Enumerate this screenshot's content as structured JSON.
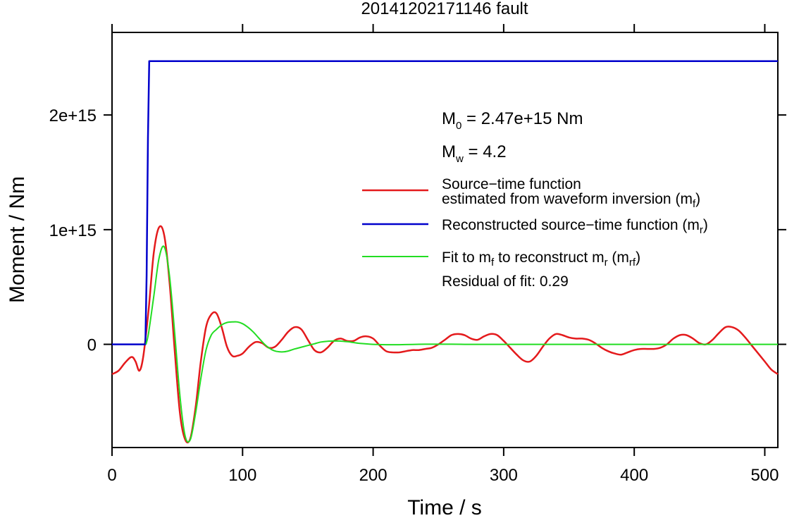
{
  "chart_data": {
    "type": "line",
    "title": "20141202171146 fault",
    "xlabel": "Time / s",
    "ylabel": "Moment / Nm",
    "xlim": [
      0,
      510
    ],
    "ylim": [
      -900000000000000.0,
      2720000000000000.0
    ],
    "xticks": [
      0,
      100,
      200,
      300,
      400,
      500
    ],
    "xtick_labels": [
      "0",
      "100",
      "200",
      "300",
      "400",
      "500"
    ],
    "yticks": [
      0,
      1000000000000000.0,
      2000000000000000.0
    ],
    "ytick_labels": [
      "0",
      "1e+15",
      "2e+15"
    ],
    "grid": false,
    "legend_position": "top-right",
    "annotations": {
      "m0": {
        "main": "M",
        "sub": "0",
        "rest": " = 2.47e+15 Nm"
      },
      "mw": {
        "main": "M",
        "sub": "w",
        "rest": " = 4.2"
      },
      "residual": "Residual of fit: 0.29"
    },
    "legend": {
      "stf_line1": "Source−time function",
      "stf_line2": "estimated from waveform inversion (m",
      "stf_sub": "f",
      "stf_close": ")",
      "rec_text": "Reconstructed source−time function (m",
      "rec_sub": "r",
      "rec_close": ")",
      "fit_a": "Fit to m",
      "fit_a_sub": "f",
      "fit_b": " to reconstruct m",
      "fit_b_sub": "r",
      "fit_c": " (m",
      "fit_c_sub": "rf",
      "fit_d": ")"
    },
    "series": [
      {
        "key": "source_time_function",
        "color": "#e41a1c",
        "x": [
          0,
          5,
          10,
          15,
          18,
          21,
          24,
          28,
          32,
          36,
          40,
          44,
          48,
          52,
          56,
          60,
          64,
          68,
          72,
          76,
          80,
          84,
          88,
          92,
          96,
          100,
          105,
          110,
          115,
          120,
          125,
          130,
          135,
          140,
          145,
          150,
          155,
          160,
          165,
          170,
          175,
          180,
          185,
          190,
          195,
          200,
          205,
          210,
          215,
          220,
          225,
          230,
          235,
          240,
          245,
          250,
          255,
          260,
          265,
          270,
          275,
          280,
          285,
          290,
          295,
          300,
          305,
          310,
          315,
          320,
          325,
          330,
          335,
          340,
          345,
          350,
          355,
          360,
          365,
          370,
          375,
          380,
          385,
          390,
          395,
          400,
          405,
          410,
          415,
          420,
          425,
          430,
          435,
          440,
          445,
          450,
          455,
          460,
          465,
          470,
          475,
          480,
          485,
          490,
          495,
          500,
          505,
          510
        ],
        "y": [
          -260000000000000.0,
          -230000000000000.0,
          -160000000000000.0,
          -110000000000000.0,
          -150000000000000.0,
          -230000000000000.0,
          -100000000000000.0,
          300000000000000.0,
          800000000000000.0,
          1020000000000000.0,
          950000000000000.0,
          550000000000000.0,
          -50000000000000.0,
          -600000000000000.0,
          -830000000000000.0,
          -820000000000000.0,
          -550000000000000.0,
          -150000000000000.0,
          150000000000000.0,
          260000000000000.0,
          270000000000000.0,
          150000000000000.0,
          -20000000000000.0,
          -100000000000000.0,
          -100000000000000.0,
          -80000000000000.0,
          -20000000000000.0,
          20000000000000.0,
          10000000000000.0,
          -30000000000000.0,
          -20000000000000.0,
          40000000000000.0,
          110000000000000.0,
          150000000000000.0,
          130000000000000.0,
          40000000000000.0,
          -50000000000000.0,
          -70000000000000.0,
          -30000000000000.0,
          30000000000000.0,
          50000000000000.0,
          30000000000000.0,
          30000000000000.0,
          60000000000000.0,
          70000000000000.0,
          50000000000000.0,
          -10000000000000.0,
          -60000000000000.0,
          -70000000000000.0,
          -70000000000000.0,
          -60000000000000.0,
          -50000000000000.0,
          -50000000000000.0,
          -40000000000000.0,
          -30000000000000.0,
          0,
          40000000000000.0,
          80000000000000.0,
          90000000000000.0,
          80000000000000.0,
          50000000000000.0,
          40000000000000.0,
          70000000000000.0,
          90000000000000.0,
          80000000000000.0,
          30000000000000.0,
          -30000000000000.0,
          -90000000000000.0,
          -140000000000000.0,
          -150000000000000.0,
          -100000000000000.0,
          -20000000000000.0,
          50000000000000.0,
          90000000000000.0,
          80000000000000.0,
          60000000000000.0,
          50000000000000.0,
          50000000000000.0,
          40000000000000.0,
          10000000000000.0,
          -30000000000000.0,
          -60000000000000.0,
          -80000000000000.0,
          -90000000000000.0,
          -70000000000000.0,
          -50000000000000.0,
          -40000000000000.0,
          -40000000000000.0,
          -40000000000000.0,
          -30000000000000.0,
          0,
          50000000000000.0,
          80000000000000.0,
          80000000000000.0,
          50000000000000.0,
          10000000000000.0,
          0,
          40000000000000.0,
          100000000000000.0,
          150000000000000.0,
          150000000000000.0,
          120000000000000.0,
          60000000000000.0,
          -10000000000000.0,
          -80000000000000.0,
          -150000000000000.0,
          -220000000000000.0,
          -260000000000000.0
        ]
      },
      {
        "key": "reconstructed",
        "color": "#0000cc",
        "x": [
          0,
          25.5,
          26.5,
          27.5,
          28.5,
          510
        ],
        "y": [
          0,
          0,
          600000000000000.0,
          1800000000000000.0,
          2470000000000000.0,
          2470000000000000.0
        ]
      },
      {
        "key": "fit",
        "color": "#22dd22",
        "x": [
          26,
          28,
          32,
          36,
          40,
          44,
          48,
          52,
          56,
          60,
          64,
          68,
          72,
          76,
          80,
          84,
          88,
          92,
          96,
          100,
          104,
          108,
          112,
          116,
          120,
          124,
          128,
          132,
          136,
          140,
          145,
          150,
          155,
          160,
          165,
          170,
          175,
          180,
          185,
          190,
          200,
          210,
          220,
          230,
          240,
          250,
          260,
          270,
          280,
          290,
          300,
          320,
          340,
          360,
          380,
          400,
          420,
          440,
          460,
          480,
          500,
          510
        ],
        "y": [
          0,
          100000000000000.0,
          420000000000000.0,
          750000000000000.0,
          850000000000000.0,
          600000000000000.0,
          100000000000000.0,
          -450000000000000.0,
          -800000000000000.0,
          -830000000000000.0,
          -600000000000000.0,
          -300000000000000.0,
          -50000000000000.0,
          80000000000000.0,
          130000000000000.0,
          170000000000000.0,
          190000000000000.0,
          195000000000000.0,
          195000000000000.0,
          180000000000000.0,
          150000000000000.0,
          110000000000000.0,
          60000000000000.0,
          10000000000000.0,
          -30000000000000.0,
          -55000000000000.0,
          -65000000000000.0,
          -65000000000000.0,
          -55000000000000.0,
          -40000000000000.0,
          -25000000000000.0,
          -10000000000000.0,
          5000000000000.0,
          20000000000000.0,
          27000000000000.0,
          29000000000000.0,
          28000000000000.0,
          23000000000000.0,
          16000000000000.0,
          8000000000000.0,
          0,
          -3000000000000.0,
          -3000000000000.0,
          -1000000000000.0,
          1000000000000.0,
          1000000000000.0,
          1000000000000.0,
          0,
          0,
          0,
          0,
          0,
          0,
          0,
          0,
          0,
          0,
          0,
          0,
          0,
          0,
          0
        ]
      }
    ]
  }
}
